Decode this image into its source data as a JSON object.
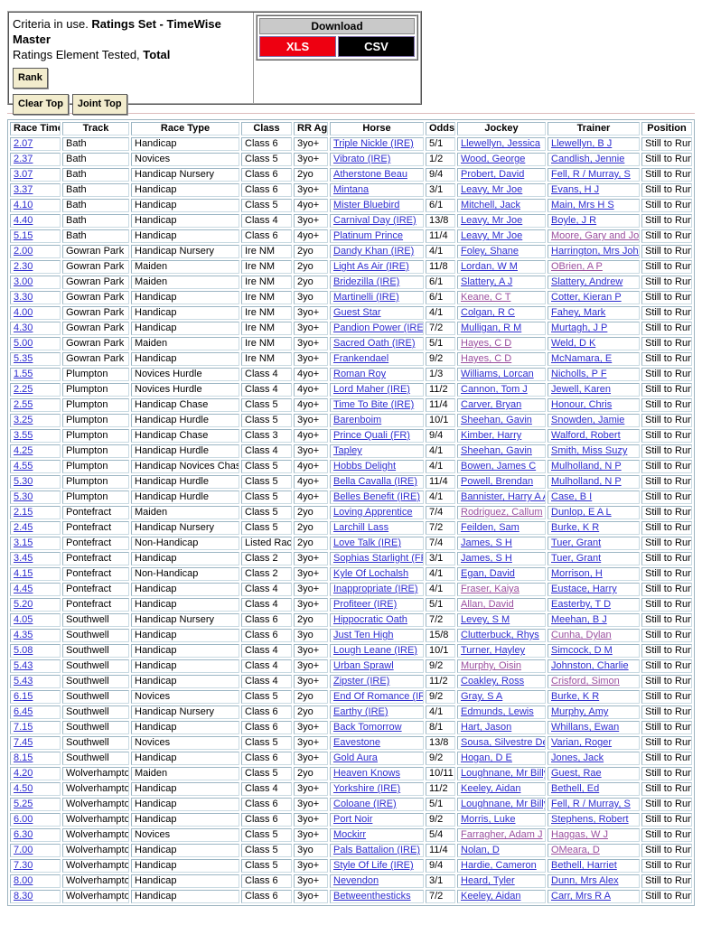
{
  "criteria_panel": {
    "line1_prefix": "Criteria in use. ",
    "line1_bold": "Ratings Set - TimeWise Master",
    "line2_prefix": "Ratings Element Tested, ",
    "line2_bold": "Total",
    "buttons": {
      "rank": "Rank",
      "clear_top": "Clear Top",
      "joint_top": "Joint Top"
    }
  },
  "download_panel": {
    "title": "Download",
    "xls_label": "XLS",
    "csv_label": "CSV"
  },
  "colors": {
    "xls_button": "#ee0011",
    "csv_button": "#000000",
    "link": "#2d2dcf",
    "visited_link": "#9a4f9f",
    "cell_border": "#b3c9d4",
    "button_bg": "#f2eccd",
    "download_header_bg": "#c9c9c9"
  },
  "table": {
    "columns": [
      {
        "key": "time",
        "label": "Race Time",
        "link": true
      },
      {
        "key": "track",
        "label": "Track",
        "link": false
      },
      {
        "key": "type",
        "label": "Race Type",
        "link": false
      },
      {
        "key": "cls",
        "label": "Class",
        "link": false
      },
      {
        "key": "age",
        "label": "RR Age",
        "link": false
      },
      {
        "key": "horse",
        "label": "Horse",
        "link": true
      },
      {
        "key": "odds",
        "label": "Odds",
        "link": false
      },
      {
        "key": "jockey",
        "label": "Jockey",
        "link": true
      },
      {
        "key": "trainer",
        "label": "Trainer",
        "link": true
      },
      {
        "key": "pos",
        "label": "Position",
        "link": false
      }
    ],
    "rows": [
      {
        "time": "2.07",
        "track": "Bath",
        "type": "Handicap",
        "cls": "Class 6",
        "age": "3yo+",
        "horse": "Triple Nickle (IRE)",
        "odds": "5/1",
        "jockey": "Llewellyn, Jessica",
        "trainer": "Llewellyn, B J",
        "pos": "Still to Run",
        "v": []
      },
      {
        "time": "2.37",
        "track": "Bath",
        "type": "Novices",
        "cls": "Class 5",
        "age": "3yo+",
        "horse": "Vibrato (IRE)",
        "odds": "1/2",
        "jockey": "Wood, George",
        "trainer": "Candlish, Jennie",
        "pos": "Still to Run",
        "v": []
      },
      {
        "time": "3.07",
        "track": "Bath",
        "type": "Handicap Nursery",
        "cls": "Class 6",
        "age": "2yo",
        "horse": "Atherstone Beau",
        "odds": "9/4",
        "jockey": "Probert, David",
        "trainer": "Fell, R / Murray, S",
        "pos": "Still to Run",
        "v": []
      },
      {
        "time": "3.37",
        "track": "Bath",
        "type": "Handicap",
        "cls": "Class 6",
        "age": "3yo+",
        "horse": "Mintana",
        "odds": "3/1",
        "jockey": "Leavy, Mr Joe",
        "trainer": "Evans, H J",
        "pos": "Still to Run",
        "v": []
      },
      {
        "time": "4.10",
        "track": "Bath",
        "type": "Handicap",
        "cls": "Class 5",
        "age": "4yo+",
        "horse": "Mister Bluebird",
        "odds": "6/1",
        "jockey": "Mitchell, Jack",
        "trainer": "Main, Mrs H S",
        "pos": "Still to Run",
        "v": []
      },
      {
        "time": "4.40",
        "track": "Bath",
        "type": "Handicap",
        "cls": "Class 4",
        "age": "3yo+",
        "horse": "Carnival Day (IRE)",
        "odds": "13/8",
        "jockey": "Leavy, Mr Joe",
        "trainer": "Boyle, J R",
        "pos": "Still to Run",
        "v": []
      },
      {
        "time": "5.15",
        "track": "Bath",
        "type": "Handicap",
        "cls": "Class 6",
        "age": "4yo+",
        "horse": "Platinum Prince",
        "odds": "11/4",
        "jockey": "Leavy, Mr Joe",
        "trainer": "Moore, Gary and Josh",
        "pos": "Still to Run",
        "v": [
          "trainer"
        ]
      },
      {
        "time": "2.00",
        "track": "Gowran Park",
        "type": "Handicap Nursery",
        "cls": "Ire NM",
        "age": "2yo",
        "horse": "Dandy Khan (IRE)",
        "odds": "4/1",
        "jockey": "Foley, Shane",
        "trainer": "Harrington, Mrs John",
        "pos": "Still to Run",
        "v": []
      },
      {
        "time": "2.30",
        "track": "Gowran Park",
        "type": "Maiden",
        "cls": "Ire NM",
        "age": "2yo",
        "horse": "Light As Air (IRE)",
        "odds": "11/8",
        "jockey": "Lordan, W M",
        "trainer": "OBrien, A P",
        "pos": "Still to Run",
        "v": [
          "trainer"
        ]
      },
      {
        "time": "3.00",
        "track": "Gowran Park",
        "type": "Maiden",
        "cls": "Ire NM",
        "age": "2yo",
        "horse": "Bridezilla (IRE)",
        "odds": "6/1",
        "jockey": "Slattery, A J",
        "trainer": "Slattery, Andrew",
        "pos": "Still to Run",
        "v": []
      },
      {
        "time": "3.30",
        "track": "Gowran Park",
        "type": "Handicap",
        "cls": "Ire NM",
        "age": "3yo",
        "horse": "Martinelli (IRE)",
        "odds": "6/1",
        "jockey": "Keane, C T",
        "trainer": "Cotter, Kieran P",
        "pos": "Still to Run",
        "v": [
          "jockey"
        ]
      },
      {
        "time": "4.00",
        "track": "Gowran Park",
        "type": "Handicap",
        "cls": "Ire NM",
        "age": "3yo+",
        "horse": "Guest Star",
        "odds": "4/1",
        "jockey": "Colgan, R C",
        "trainer": "Fahey, Mark",
        "pos": "Still to Run",
        "v": []
      },
      {
        "time": "4.30",
        "track": "Gowran Park",
        "type": "Handicap",
        "cls": "Ire NM",
        "age": "3yo+",
        "horse": "Pandion Power (IRE)",
        "odds": "7/2",
        "jockey": "Mulligan, R M",
        "trainer": "Murtagh, J P",
        "pos": "Still to Run",
        "v": []
      },
      {
        "time": "5.00",
        "track": "Gowran Park",
        "type": "Maiden",
        "cls": "Ire NM",
        "age": "3yo+",
        "horse": "Sacred Oath (IRE)",
        "odds": "5/1",
        "jockey": "Hayes, C D",
        "trainer": "Weld, D K",
        "pos": "Still to Run",
        "v": [
          "jockey"
        ]
      },
      {
        "time": "5.35",
        "track": "Gowran Park",
        "type": "Handicap",
        "cls": "Ire NM",
        "age": "3yo+",
        "horse": "Frankendael",
        "odds": "9/2",
        "jockey": "Hayes, C D",
        "trainer": "McNamara, E",
        "pos": "Still to Run",
        "v": [
          "jockey"
        ]
      },
      {
        "time": "1.55",
        "track": "Plumpton",
        "type": "Novices Hurdle",
        "cls": "Class 4",
        "age": "4yo+",
        "horse": "Roman Roy",
        "odds": "1/3",
        "jockey": "Williams, Lorcan",
        "trainer": "Nicholls, P F",
        "pos": "Still to Run",
        "v": []
      },
      {
        "time": "2.25",
        "track": "Plumpton",
        "type": "Novices Hurdle",
        "cls": "Class 4",
        "age": "4yo+",
        "horse": "Lord Maher (IRE)",
        "odds": "11/2",
        "jockey": "Cannon, Tom J",
        "trainer": "Jewell, Karen",
        "pos": "Still to Run",
        "v": []
      },
      {
        "time": "2.55",
        "track": "Plumpton",
        "type": "Handicap Chase",
        "cls": "Class 5",
        "age": "4yo+",
        "horse": "Time To Bite (IRE)",
        "odds": "11/4",
        "jockey": "Carver, Bryan",
        "trainer": "Honour, Chris",
        "pos": "Still to Run",
        "v": []
      },
      {
        "time": "3.25",
        "track": "Plumpton",
        "type": "Handicap Hurdle",
        "cls": "Class 5",
        "age": "3yo+",
        "horse": "Barenboim",
        "odds": "10/1",
        "jockey": "Sheehan, Gavin",
        "trainer": "Snowden, Jamie",
        "pos": "Still to Run",
        "v": []
      },
      {
        "time": "3.55",
        "track": "Plumpton",
        "type": "Handicap Chase",
        "cls": "Class 3",
        "age": "4yo+",
        "horse": "Prince Quali (FR)",
        "odds": "9/4",
        "jockey": "Kimber, Harry",
        "trainer": "Walford, Robert",
        "pos": "Still to Run",
        "v": []
      },
      {
        "time": "4.25",
        "track": "Plumpton",
        "type": "Handicap Hurdle",
        "cls": "Class 4",
        "age": "3yo+",
        "horse": "Tapley",
        "odds": "4/1",
        "jockey": "Sheehan, Gavin",
        "trainer": "Smith, Miss Suzy",
        "pos": "Still to Run",
        "v": []
      },
      {
        "time": "4.55",
        "track": "Plumpton",
        "type": "Handicap Novices Chase",
        "cls": "Class 5",
        "age": "4yo+",
        "horse": "Hobbs Delight",
        "odds": "4/1",
        "jockey": "Bowen, James C",
        "trainer": "Mulholland, N P",
        "pos": "Still to Run",
        "v": []
      },
      {
        "time": "5.30",
        "track": "Plumpton",
        "type": "Handicap Hurdle",
        "cls": "Class 5",
        "age": "4yo+",
        "horse": "Bella Cavalla (IRE)",
        "odds": "11/4",
        "jockey": "Powell, Brendan",
        "trainer": "Mulholland, N P",
        "pos": "Still to Run",
        "v": []
      },
      {
        "time": "5.30",
        "track": "Plumpton",
        "type": "Handicap Hurdle",
        "cls": "Class 5",
        "age": "4yo+",
        "horse": "Belles Benefit (IRE)",
        "odds": "4/1",
        "jockey": "Bannister, Harry A A",
        "trainer": "Case, B I",
        "pos": "Still to Run",
        "v": []
      },
      {
        "time": "2.15",
        "track": "Pontefract",
        "type": "Maiden",
        "cls": "Class 5",
        "age": "2yo",
        "horse": "Loving Apprentice",
        "odds": "7/4",
        "jockey": "Rodriguez, Callum",
        "trainer": "Dunlop, E A L",
        "pos": "Still to Run",
        "v": [
          "jockey"
        ]
      },
      {
        "time": "2.45",
        "track": "Pontefract",
        "type": "Handicap Nursery",
        "cls": "Class 5",
        "age": "2yo",
        "horse": "Larchill Lass",
        "odds": "7/2",
        "jockey": "Feilden, Sam",
        "trainer": "Burke, K R",
        "pos": "Still to Run",
        "v": []
      },
      {
        "time": "3.15",
        "track": "Pontefract",
        "type": "Non-Handicap",
        "cls": "Listed Race",
        "age": "2yo",
        "horse": "Love Talk (IRE)",
        "odds": "7/4",
        "jockey": "James, S H",
        "trainer": "Tuer, Grant",
        "pos": "Still to Run",
        "v": []
      },
      {
        "time": "3.45",
        "track": "Pontefract",
        "type": "Handicap",
        "cls": "Class 2",
        "age": "3yo+",
        "horse": "Sophias Starlight (FR)",
        "odds": "3/1",
        "jockey": "James, S H",
        "trainer": "Tuer, Grant",
        "pos": "Still to Run",
        "v": []
      },
      {
        "time": "4.15",
        "track": "Pontefract",
        "type": "Non-Handicap",
        "cls": "Class 2",
        "age": "3yo+",
        "horse": "Kyle Of Lochalsh",
        "odds": "4/1",
        "jockey": "Egan, David",
        "trainer": "Morrison, H",
        "pos": "Still to Run",
        "v": []
      },
      {
        "time": "4.45",
        "track": "Pontefract",
        "type": "Handicap",
        "cls": "Class 4",
        "age": "3yo+",
        "horse": "Inappropriate (IRE)",
        "odds": "4/1",
        "jockey": "Fraser, Kaiya",
        "trainer": "Eustace, Harry",
        "pos": "Still to Run",
        "v": [
          "jockey"
        ]
      },
      {
        "time": "5.20",
        "track": "Pontefract",
        "type": "Handicap",
        "cls": "Class 4",
        "age": "3yo+",
        "horse": "Profiteer (IRE)",
        "odds": "5/1",
        "jockey": "Allan, David",
        "trainer": "Easterby, T D",
        "pos": "Still to Run",
        "v": [
          "jockey"
        ]
      },
      {
        "time": "4.05",
        "track": "Southwell",
        "type": "Handicap Nursery",
        "cls": "Class 6",
        "age": "2yo",
        "horse": "Hippocratic Oath",
        "odds": "7/2",
        "jockey": "Levey, S M",
        "trainer": "Meehan, B J",
        "pos": "Still to Run",
        "v": []
      },
      {
        "time": "4.35",
        "track": "Southwell",
        "type": "Handicap",
        "cls": "Class 6",
        "age": "3yo",
        "horse": "Just Ten High",
        "odds": "15/8",
        "jockey": "Clutterbuck, Rhys",
        "trainer": "Cunha, Dylan",
        "pos": "Still to Run",
        "v": [
          "trainer"
        ]
      },
      {
        "time": "5.08",
        "track": "Southwell",
        "type": "Handicap",
        "cls": "Class 4",
        "age": "3yo+",
        "horse": "Lough Leane (IRE)",
        "odds": "10/1",
        "jockey": "Turner, Hayley",
        "trainer": "Simcock, D M",
        "pos": "Still to Run",
        "v": []
      },
      {
        "time": "5.43",
        "track": "Southwell",
        "type": "Handicap",
        "cls": "Class 4",
        "age": "3yo+",
        "horse": "Urban Sprawl",
        "odds": "9/2",
        "jockey": "Murphy, Oisin",
        "trainer": "Johnston, Charlie",
        "pos": "Still to Run",
        "v": [
          "jockey"
        ]
      },
      {
        "time": "5.43",
        "track": "Southwell",
        "type": "Handicap",
        "cls": "Class 4",
        "age": "3yo+",
        "horse": "Zipster (IRE)",
        "odds": "11/2",
        "jockey": "Coakley, Ross",
        "trainer": "Crisford, Simon",
        "pos": "Still to Run",
        "v": [
          "trainer"
        ]
      },
      {
        "time": "6.15",
        "track": "Southwell",
        "type": "Novices",
        "cls": "Class 5",
        "age": "2yo",
        "horse": "End Of Romance (IRE)",
        "odds": "9/2",
        "jockey": "Gray, S A",
        "trainer": "Burke, K R",
        "pos": "Still to Run",
        "v": []
      },
      {
        "time": "6.45",
        "track": "Southwell",
        "type": "Handicap Nursery",
        "cls": "Class 6",
        "age": "2yo",
        "horse": "Earthy (IRE)",
        "odds": "4/1",
        "jockey": "Edmunds, Lewis",
        "trainer": "Murphy, Amy",
        "pos": "Still to Run",
        "v": []
      },
      {
        "time": "7.15",
        "track": "Southwell",
        "type": "Handicap",
        "cls": "Class 6",
        "age": "3yo+",
        "horse": "Back Tomorrow",
        "odds": "8/1",
        "jockey": "Hart, Jason",
        "trainer": "Whillans, Ewan",
        "pos": "Still to Run",
        "v": []
      },
      {
        "time": "7.45",
        "track": "Southwell",
        "type": "Novices",
        "cls": "Class 5",
        "age": "3yo+",
        "horse": "Eavestone",
        "odds": "13/8",
        "jockey": "Sousa, Silvestre De",
        "trainer": "Varian, Roger",
        "pos": "Still to Run",
        "v": []
      },
      {
        "time": "8.15",
        "track": "Southwell",
        "type": "Handicap",
        "cls": "Class 6",
        "age": "3yo+",
        "horse": "Gold Aura",
        "odds": "9/2",
        "jockey": "Hogan, D E",
        "trainer": "Jones, Jack",
        "pos": "Still to Run",
        "v": []
      },
      {
        "time": "4.20",
        "track": "Wolverhampton",
        "type": "Maiden",
        "cls": "Class 5",
        "age": "2yo",
        "horse": "Heaven Knows",
        "odds": "10/11",
        "jockey": "Loughnane, Mr Billy",
        "trainer": "Guest, Rae",
        "pos": "Still to Run",
        "v": []
      },
      {
        "time": "4.50",
        "track": "Wolverhampton",
        "type": "Handicap",
        "cls": "Class 4",
        "age": "3yo+",
        "horse": "Yorkshire (IRE)",
        "odds": "11/2",
        "jockey": "Keeley, Aidan",
        "trainer": "Bethell, Ed",
        "pos": "Still to Run",
        "v": []
      },
      {
        "time": "5.25",
        "track": "Wolverhampton",
        "type": "Handicap",
        "cls": "Class 6",
        "age": "3yo+",
        "horse": "Coloane (IRE)",
        "odds": "5/1",
        "jockey": "Loughnane, Mr Billy",
        "trainer": "Fell, R / Murray, S",
        "pos": "Still to Run",
        "v": []
      },
      {
        "time": "6.00",
        "track": "Wolverhampton",
        "type": "Handicap",
        "cls": "Class 6",
        "age": "3yo+",
        "horse": "Port Noir",
        "odds": "9/2",
        "jockey": "Morris, Luke",
        "trainer": "Stephens, Robert",
        "pos": "Still to Run",
        "v": []
      },
      {
        "time": "6.30",
        "track": "Wolverhampton",
        "type": "Novices",
        "cls": "Class 5",
        "age": "3yo+",
        "horse": "Mockirr",
        "odds": "5/4",
        "jockey": "Farragher, Adam J",
        "trainer": "Haggas, W J",
        "pos": "Still to Run",
        "v": [
          "jockey",
          "trainer"
        ]
      },
      {
        "time": "7.00",
        "track": "Wolverhampton",
        "type": "Handicap",
        "cls": "Class 5",
        "age": "3yo",
        "horse": "Pals Battalion (IRE)",
        "odds": "11/4",
        "jockey": "Nolan, D",
        "trainer": "OMeara, D",
        "pos": "Still to Run",
        "v": [
          "trainer"
        ]
      },
      {
        "time": "7.30",
        "track": "Wolverhampton",
        "type": "Handicap",
        "cls": "Class 5",
        "age": "3yo+",
        "horse": "Style Of Life (IRE)",
        "odds": "9/4",
        "jockey": "Hardie, Cameron",
        "trainer": "Bethell, Harriet",
        "pos": "Still to Run",
        "v": []
      },
      {
        "time": "8.00",
        "track": "Wolverhampton",
        "type": "Handicap",
        "cls": "Class 6",
        "age": "3yo+",
        "horse": "Nevendon",
        "odds": "3/1",
        "jockey": "Heard, Tyler",
        "trainer": "Dunn, Mrs Alex",
        "pos": "Still to Run",
        "v": []
      },
      {
        "time": "8.30",
        "track": "Wolverhampton",
        "type": "Handicap",
        "cls": "Class 6",
        "age": "3yo+",
        "horse": "Betweenthesticks",
        "odds": "7/2",
        "jockey": "Keeley, Aidan",
        "trainer": "Carr, Mrs R A",
        "pos": "Still to Run",
        "v": []
      }
    ]
  }
}
